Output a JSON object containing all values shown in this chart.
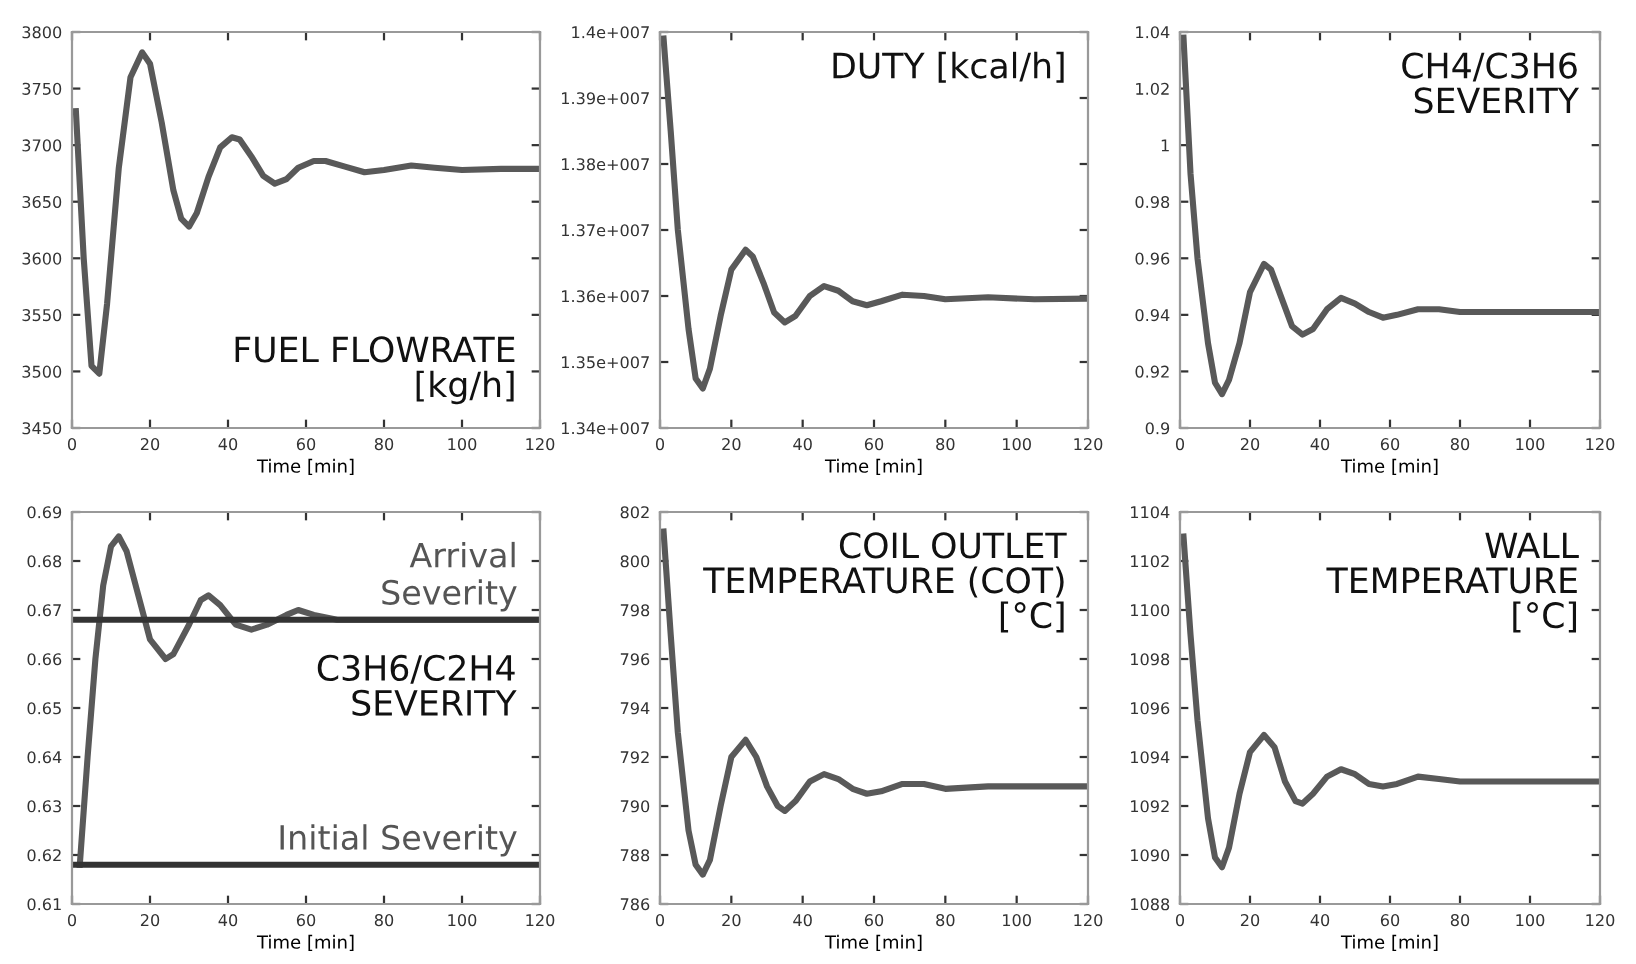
{
  "chart_data": [
    {
      "type": "line",
      "title": "FUEL FLOWRATE\n[kg/h]",
      "xlabel": "Time [min]",
      "xlim": [
        0,
        120
      ],
      "xticks": [
        0,
        20,
        40,
        60,
        80,
        100,
        120
      ],
      "ylim": [
        3450,
        3800
      ],
      "yticks": [
        3450,
        3500,
        3550,
        3600,
        3650,
        3700,
        3750,
        3800
      ],
      "series": [
        {
          "color": "#595959",
          "x": [
            1,
            3,
            5,
            7,
            9,
            12,
            15,
            18,
            20,
            23,
            26,
            28,
            30,
            32,
            35,
            38,
            41,
            43,
            46,
            49,
            52,
            55,
            58,
            62,
            65,
            70,
            75,
            80,
            87,
            93,
            100,
            110,
            120
          ],
          "values": [
            3730,
            3600,
            3505,
            3498,
            3560,
            3680,
            3760,
            3782,
            3772,
            3720,
            3660,
            3635,
            3628,
            3640,
            3672,
            3698,
            3707,
            3705,
            3690,
            3673,
            3666,
            3670,
            3680,
            3686,
            3686,
            3681,
            3676,
            3678,
            3682,
            3680,
            3678,
            3679,
            3679
          ]
        }
      ]
    },
    {
      "type": "line",
      "title": "DUTY [kcal/h]",
      "xlabel": "Time [min]",
      "xlim": [
        0,
        120
      ],
      "xticks": [
        0,
        20,
        40,
        60,
        80,
        100,
        120
      ],
      "ylim": [
        13400000,
        14000000
      ],
      "yticks": [
        {
          "value": 13400000,
          "label": "1.34e+007"
        },
        {
          "value": 13500000,
          "label": "1.35e+007"
        },
        {
          "value": 13600000,
          "label": "1.36e+007"
        },
        {
          "value": 13700000,
          "label": "1.37e+007"
        },
        {
          "value": 13800000,
          "label": "1.38e+007"
        },
        {
          "value": 13900000,
          "label": "1.39e+007"
        },
        {
          "value": 14000000,
          "label": "1.4e+007"
        }
      ],
      "series": [
        {
          "color": "#595959",
          "x": [
            1,
            3,
            5,
            8,
            10,
            12,
            14,
            17,
            20,
            24,
            26,
            29,
            32,
            35,
            38,
            42,
            46,
            50,
            54,
            58,
            62,
            68,
            74,
            80,
            92,
            105,
            120
          ],
          "values": [
            13990000,
            13850000,
            13700000,
            13550000,
            13475000,
            13460000,
            13490000,
            13570000,
            13640000,
            13670000,
            13660000,
            13620000,
            13575000,
            13560000,
            13570000,
            13600000,
            13615000,
            13608000,
            13592000,
            13586000,
            13592000,
            13602000,
            13600000,
            13595000,
            13598000,
            13595000,
            13596000
          ]
        }
      ]
    },
    {
      "type": "line",
      "title": "CH4/C3H6\nSEVERITY",
      "xlabel": "Time [min]",
      "xlim": [
        0,
        120
      ],
      "xticks": [
        0,
        20,
        40,
        60,
        80,
        100,
        120
      ],
      "ylim": [
        0.9,
        1.04
      ],
      "yticks": [
        0.9,
        0.92,
        0.94,
        0.96,
        0.98,
        1,
        1.02,
        1.04
      ],
      "series": [
        {
          "color": "#595959",
          "x": [
            1,
            3,
            5,
            8,
            10,
            12,
            14,
            17,
            20,
            24,
            26,
            29,
            32,
            35,
            38,
            42,
            46,
            50,
            54,
            58,
            62,
            68,
            74,
            80,
            95,
            105,
            120
          ],
          "values": [
            1.038,
            0.99,
            0.96,
            0.93,
            0.916,
            0.912,
            0.917,
            0.93,
            0.948,
            0.958,
            0.956,
            0.946,
            0.936,
            0.933,
            0.935,
            0.942,
            0.946,
            0.944,
            0.941,
            0.939,
            0.94,
            0.942,
            0.942,
            0.941,
            0.941,
            0.941,
            0.941
          ]
        }
      ]
    },
    {
      "type": "line",
      "title": "C3H6/C2H4\nSEVERITY",
      "xlabel": "Time [min]",
      "xlim": [
        0,
        120
      ],
      "xticks": [
        0,
        20,
        40,
        60,
        80,
        100,
        120
      ],
      "ylim": [
        0.61,
        0.69
      ],
      "yticks": [
        0.61,
        0.62,
        0.63,
        0.64,
        0.65,
        0.66,
        0.67,
        0.68,
        0.69
      ],
      "ref_lines": [
        {
          "axis": "y",
          "value": 0.668,
          "label": "Arrival\nSeverity",
          "color": "#333333"
        },
        {
          "axis": "y",
          "value": 0.618,
          "label": "Initial Severity",
          "color": "#333333"
        }
      ],
      "series": [
        {
          "color": "#595959",
          "x": [
            2,
            4,
            6,
            8,
            10,
            12,
            14,
            17,
            20,
            24,
            26,
            30,
            33,
            35,
            38,
            42,
            46,
            50,
            55,
            58,
            62,
            68,
            80,
            100,
            120
          ],
          "values": [
            0.618,
            0.64,
            0.66,
            0.675,
            0.683,
            0.685,
            0.682,
            0.673,
            0.664,
            0.66,
            0.661,
            0.667,
            0.672,
            0.673,
            0.671,
            0.667,
            0.666,
            0.667,
            0.669,
            0.67,
            0.669,
            0.668,
            0.668,
            0.668,
            0.668
          ]
        }
      ]
    },
    {
      "type": "line",
      "title": "COIL OUTLET\nTEMPERATURE (COT)\n[°C]",
      "xlabel": "Time [min]",
      "xlim": [
        0,
        120
      ],
      "xticks": [
        0,
        20,
        40,
        60,
        80,
        100,
        120
      ],
      "ylim": [
        786,
        802
      ],
      "yticks": [
        786,
        788,
        790,
        792,
        794,
        796,
        798,
        800,
        802
      ],
      "series": [
        {
          "color": "#595959",
          "x": [
            1,
            3,
            5,
            8,
            10,
            12,
            14,
            17,
            20,
            24,
            27,
            30,
            33,
            35,
            38,
            42,
            46,
            50,
            54,
            58,
            62,
            68,
            74,
            80,
            92,
            105,
            120
          ],
          "values": [
            801.2,
            797,
            793,
            789,
            787.6,
            787.2,
            787.8,
            790,
            792,
            792.7,
            792,
            790.8,
            790,
            789.8,
            790.2,
            791,
            791.3,
            791.1,
            790.7,
            790.5,
            790.6,
            790.9,
            790.9,
            790.7,
            790.8,
            790.8,
            790.8
          ]
        }
      ]
    },
    {
      "type": "line",
      "title": "WALL\nTEMPERATURE\n[°C]",
      "xlabel": "Time [min]",
      "xlim": [
        0,
        120
      ],
      "xticks": [
        0,
        20,
        40,
        60,
        80,
        100,
        120
      ],
      "ylim": [
        1088,
        1104
      ],
      "yticks": [
        1088,
        1090,
        1092,
        1094,
        1096,
        1098,
        1100,
        1102,
        1104
      ],
      "series": [
        {
          "color": "#595959",
          "x": [
            1,
            3,
            5,
            8,
            10,
            12,
            14,
            17,
            20,
            24,
            27,
            30,
            33,
            35,
            38,
            42,
            46,
            50,
            54,
            58,
            62,
            68,
            74,
            80,
            92,
            105,
            120
          ],
          "values": [
            1103,
            1099,
            1095.5,
            1091.5,
            1089.9,
            1089.5,
            1090.3,
            1092.5,
            1094.2,
            1094.9,
            1094.4,
            1093,
            1092.2,
            1092.1,
            1092.5,
            1093.2,
            1093.5,
            1093.3,
            1092.9,
            1092.8,
            1092.9,
            1093.2,
            1093.1,
            1093.0,
            1093.0,
            1093.0,
            1093.0
          ]
        }
      ]
    }
  ]
}
